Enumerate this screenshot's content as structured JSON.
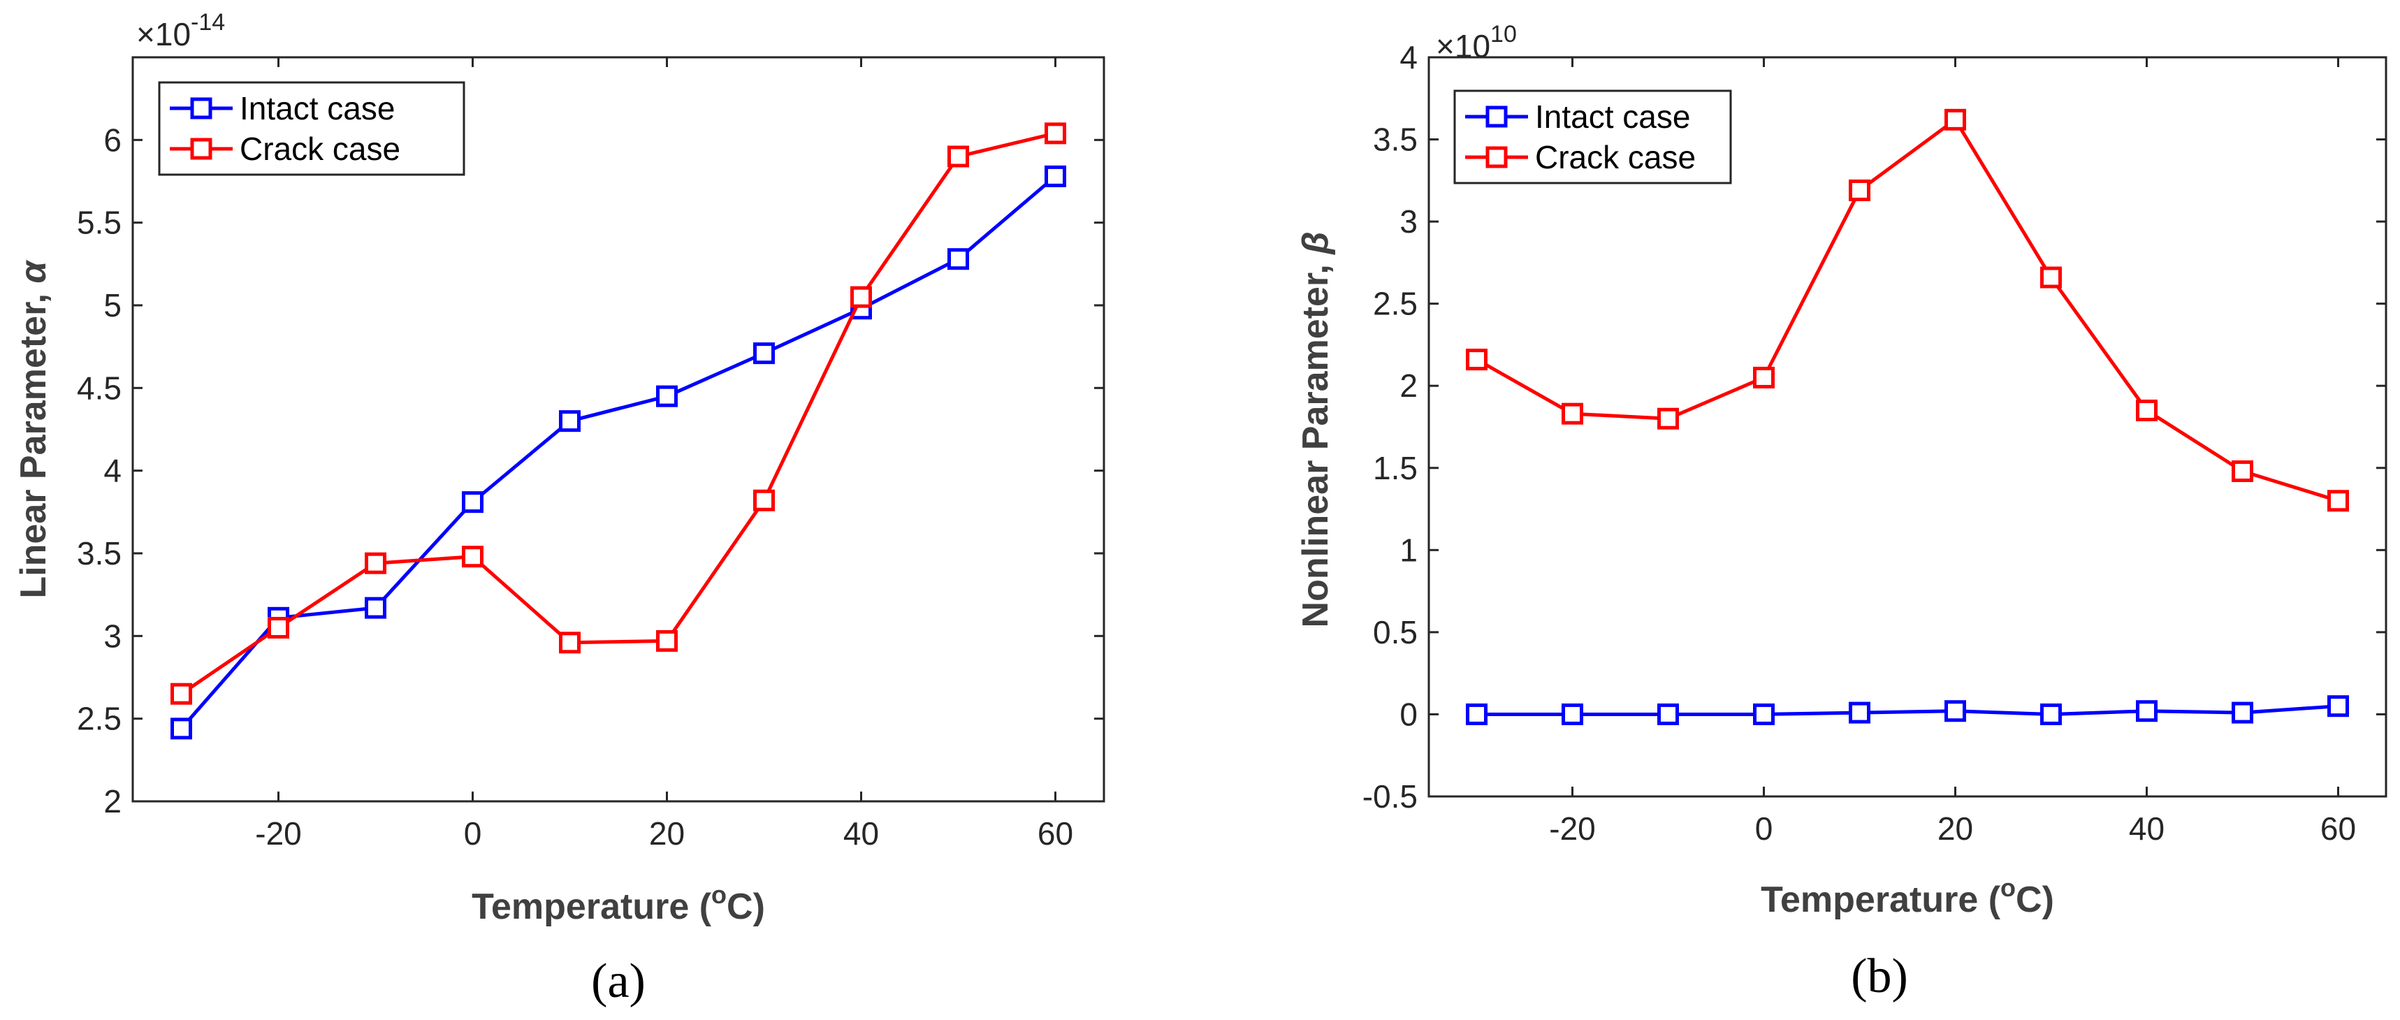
{
  "chart_data": [
    {
      "type": "line",
      "panel": "a",
      "caption": "(a)",
      "xlabel": "Temperature (",
      "xlabel_sup": "o",
      "xlabel_end": "C)",
      "ylabel": "Linear Parameter, ",
      "ylabel_symbol": "α",
      "y_exponent_base": "×10",
      "y_exponent_power": "-14",
      "xlim": [
        -35,
        65
      ],
      "ylim": [
        2,
        6.5
      ],
      "xticks": [
        -20,
        0,
        20,
        40,
        60
      ],
      "xtick_labels": [
        "-20",
        "0",
        "20",
        "40",
        "60"
      ],
      "yticks": [
        2,
        2.5,
        3,
        3.5,
        4,
        4.5,
        5,
        5.5,
        6
      ],
      "ytick_labels": [
        "2",
        "2.5",
        "3",
        "3.5",
        "4",
        "4.5",
        "5",
        "5.5",
        "6"
      ],
      "x": [
        -30,
        -20,
        -10,
        0,
        10,
        20,
        30,
        40,
        50,
        60
      ],
      "series": [
        {
          "name": "Intact case",
          "color": "#0000ff",
          "values": [
            2.44,
            3.11,
            3.17,
            3.81,
            4.3,
            4.45,
            4.71,
            4.98,
            5.28,
            5.78
          ]
        },
        {
          "name": "Crack case",
          "color": "#ff0000",
          "values": [
            2.65,
            3.05,
            3.44,
            3.48,
            2.96,
            2.97,
            3.82,
            5.05,
            5.9,
            6.04
          ]
        }
      ],
      "legend_position": "top-left",
      "grid": false
    },
    {
      "type": "line",
      "panel": "b",
      "caption": "(b)",
      "xlabel": "Temperature (",
      "xlabel_sup": "o",
      "xlabel_end": "C)",
      "ylabel": "Nonlinear Parameter, ",
      "ylabel_symbol": "β",
      "y_exponent_base": "×10",
      "y_exponent_power": "10",
      "xlim": [
        -35,
        65
      ],
      "ylim": [
        -0.5,
        4
      ],
      "xticks": [
        -20,
        0,
        20,
        40,
        60
      ],
      "xtick_labels": [
        "-20",
        "0",
        "20",
        "40",
        "60"
      ],
      "yticks": [
        -0.5,
        0,
        0.5,
        1,
        1.5,
        2,
        2.5,
        3,
        3.5,
        4
      ],
      "ytick_labels": [
        "-0.5",
        "0",
        "0.5",
        "1",
        "1.5",
        "2",
        "2.5",
        "3",
        "3.5",
        "4"
      ],
      "x": [
        -30,
        -20,
        -10,
        0,
        10,
        20,
        30,
        40,
        50,
        60
      ],
      "series": [
        {
          "name": "Intact case",
          "color": "#0000ff",
          "values": [
            0.0,
            0.0,
            0.0,
            0.0,
            0.01,
            0.02,
            0.0,
            0.02,
            0.01,
            0.05
          ]
        },
        {
          "name": "Crack case",
          "color": "#ff0000",
          "values": [
            2.16,
            1.83,
            1.8,
            2.05,
            3.19,
            3.62,
            2.66,
            1.85,
            1.48,
            1.3
          ]
        }
      ],
      "legend_position": "top-left",
      "grid": false
    }
  ]
}
